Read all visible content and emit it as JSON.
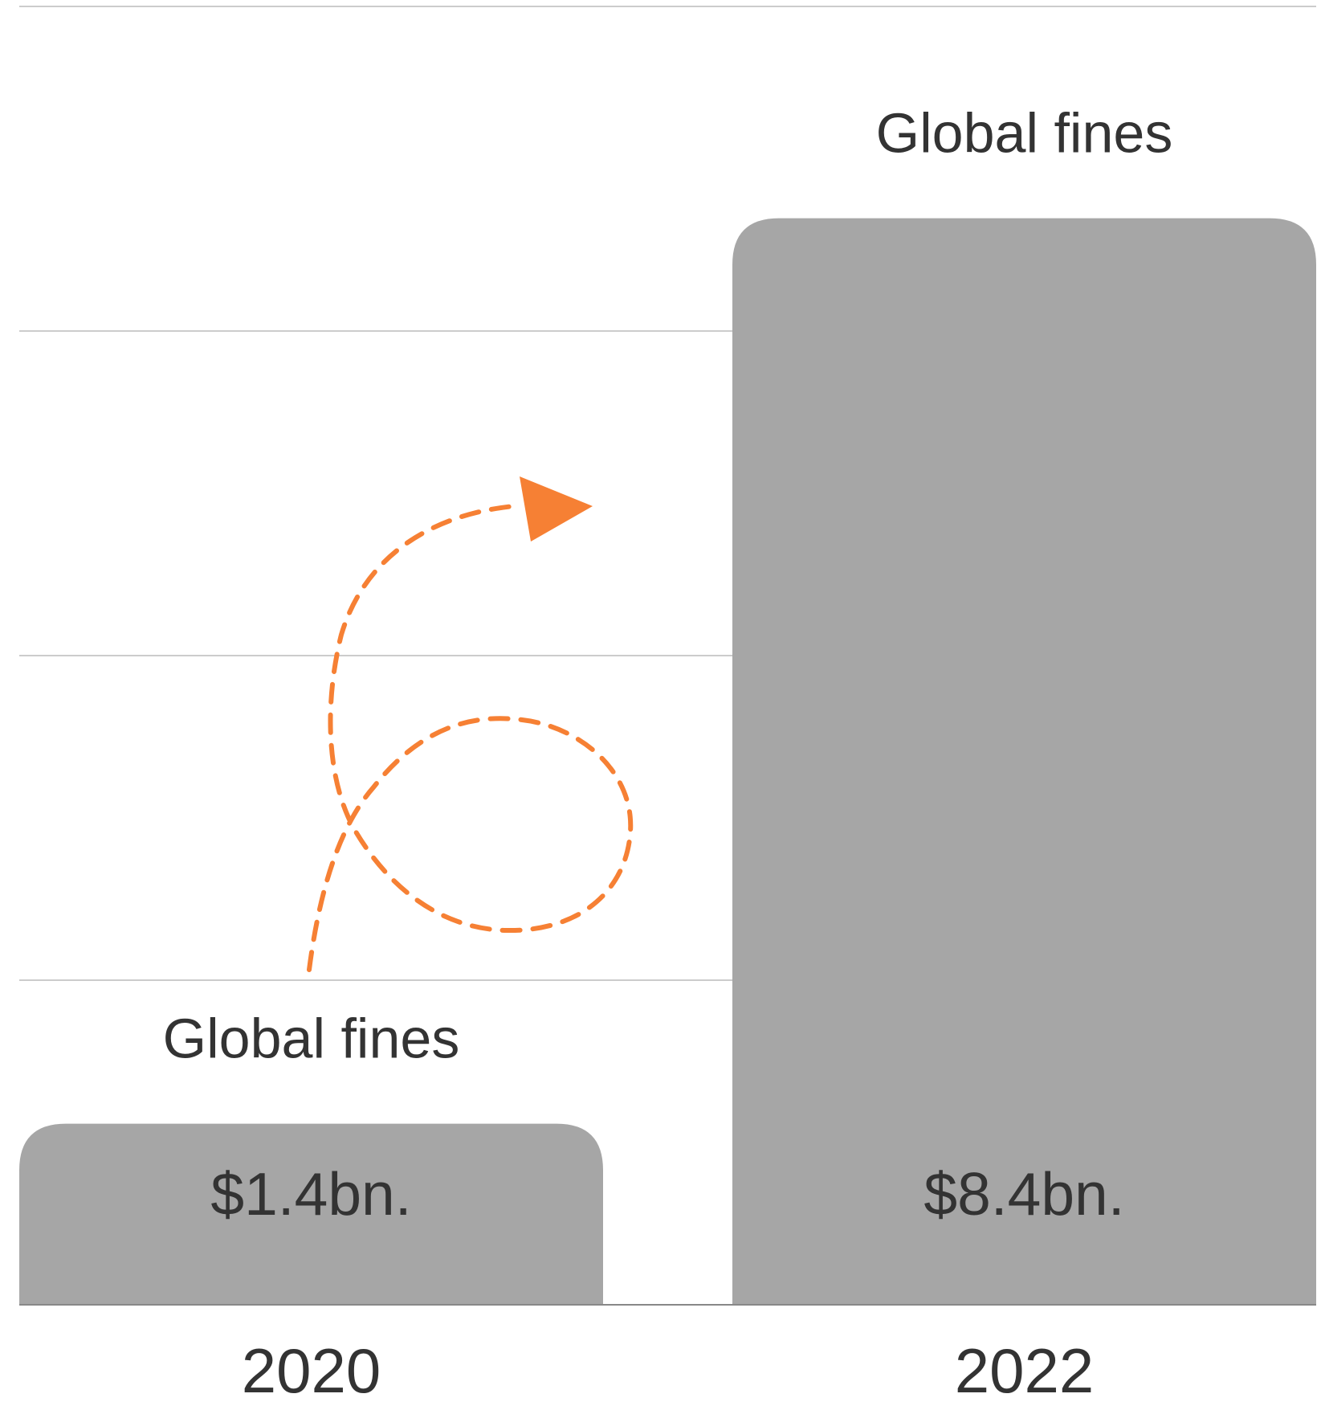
{
  "chart_data": {
    "type": "bar",
    "categories": [
      "2020",
      "2022"
    ],
    "values": [
      1.4,
      8.4
    ],
    "value_labels": [
      "$1.4bn.",
      "$8.4bn."
    ],
    "bar_titles": [
      "Global fines",
      "Global fines"
    ],
    "title": "",
    "xlabel": "",
    "ylabel": "",
    "grid": true,
    "legend": "none",
    "bar_color": "#a6a6a6",
    "arrow_color": "#f68034",
    "text_color": "#333333",
    "grid_color": "#cccccc"
  }
}
